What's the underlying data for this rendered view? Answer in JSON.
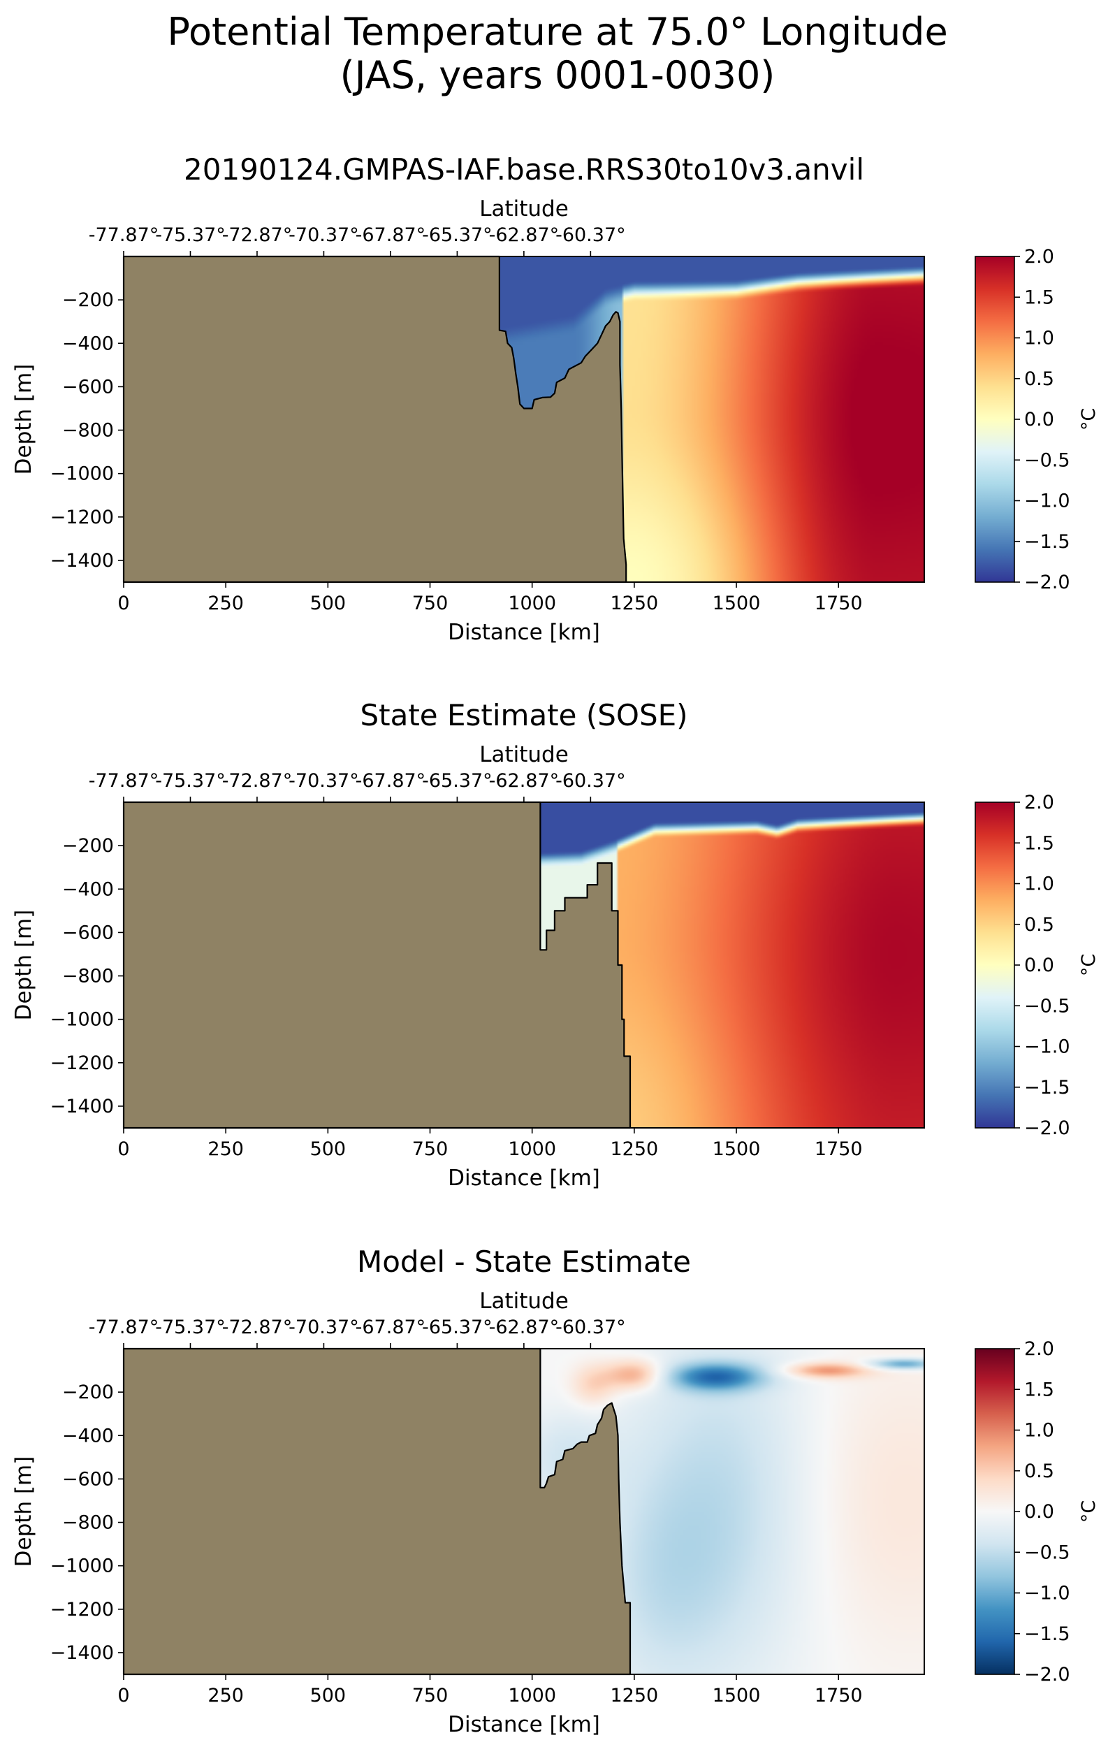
{
  "figure": {
    "title_line1": "Potential Temperature at 75.0° Longitude",
    "title_line2": "(JAS, years 0001-0030)"
  },
  "chart_data": [
    {
      "type": "heatmap",
      "title": "20190124.GMPAS-IAF.base.RRS30to10v3.anvil",
      "xlabel": "Distance [km]",
      "ylabel": "Depth [m]",
      "top_xlabel": "Latitude",
      "xlim": [
        0,
        1960
      ],
      "ylim": [
        -1500,
        0
      ],
      "xticks": [
        "0",
        "250",
        "500",
        "750",
        "1000",
        "1250",
        "1500",
        "1750"
      ],
      "yticks": [
        "−200",
        "−400",
        "−600",
        "−800",
        "−1000",
        "−1200",
        "−1400"
      ],
      "top_ticks": [
        "-77.87°",
        "-75.37°",
        "-72.87°",
        "-70.37°",
        "-67.87°",
        "-65.37°",
        "-62.87°",
        "-60.37°"
      ],
      "colorbar": {
        "label": "°C",
        "min": -2.0,
        "max": 2.0,
        "ticks": [
          "2.0",
          "1.5",
          "1.0",
          "0.5",
          "0.0",
          "−0.5",
          "−1.0",
          "−1.5",
          "−2.0"
        ],
        "colormap": "RdYlBu_r"
      },
      "land_color": "#8F8264",
      "field": "temperature_model"
    },
    {
      "type": "heatmap",
      "title": "State Estimate (SOSE)",
      "xlabel": "Distance [km]",
      "ylabel": "Depth [m]",
      "top_xlabel": "Latitude",
      "xlim": [
        0,
        1960
      ],
      "ylim": [
        -1500,
        0
      ],
      "xticks": [
        "0",
        "250",
        "500",
        "750",
        "1000",
        "1250",
        "1500",
        "1750"
      ],
      "yticks": [
        "−200",
        "−400",
        "−600",
        "−800",
        "−1000",
        "−1200",
        "−1400"
      ],
      "top_ticks": [
        "-77.87°",
        "-75.37°",
        "-72.87°",
        "-70.37°",
        "-67.87°",
        "-65.37°",
        "-62.87°",
        "-60.37°"
      ],
      "colorbar": {
        "label": "°C",
        "min": -2.0,
        "max": 2.0,
        "ticks": [
          "2.0",
          "1.5",
          "1.0",
          "0.5",
          "0.0",
          "−0.5",
          "−1.0",
          "−1.5",
          "−2.0"
        ],
        "colormap": "RdYlBu_r"
      },
      "land_color": "#8F8264",
      "field": "temperature_sose"
    },
    {
      "type": "heatmap",
      "title": "Model - State Estimate",
      "xlabel": "Distance [km]",
      "ylabel": "Depth [m]",
      "top_xlabel": "Latitude",
      "xlim": [
        0,
        1960
      ],
      "ylim": [
        -1500,
        0
      ],
      "xticks": [
        "0",
        "250",
        "500",
        "750",
        "1000",
        "1250",
        "1500",
        "1750"
      ],
      "yticks": [
        "−200",
        "−400",
        "−600",
        "−800",
        "−1000",
        "−1200",
        "−1400"
      ],
      "top_ticks": [
        "-77.87°",
        "-75.37°",
        "-72.87°",
        "-70.37°",
        "-67.87°",
        "-65.37°",
        "-62.87°",
        "-60.37°"
      ],
      "colorbar": {
        "label": "°C",
        "min": -2.0,
        "max": 2.0,
        "ticks": [
          "2.0",
          "1.5",
          "1.0",
          "0.5",
          "0.0",
          "−0.5",
          "−1.0",
          "−1.5",
          "−2.0"
        ],
        "colormap": "RdBu_r"
      },
      "land_color": "#8F8264",
      "field": "difference"
    }
  ]
}
